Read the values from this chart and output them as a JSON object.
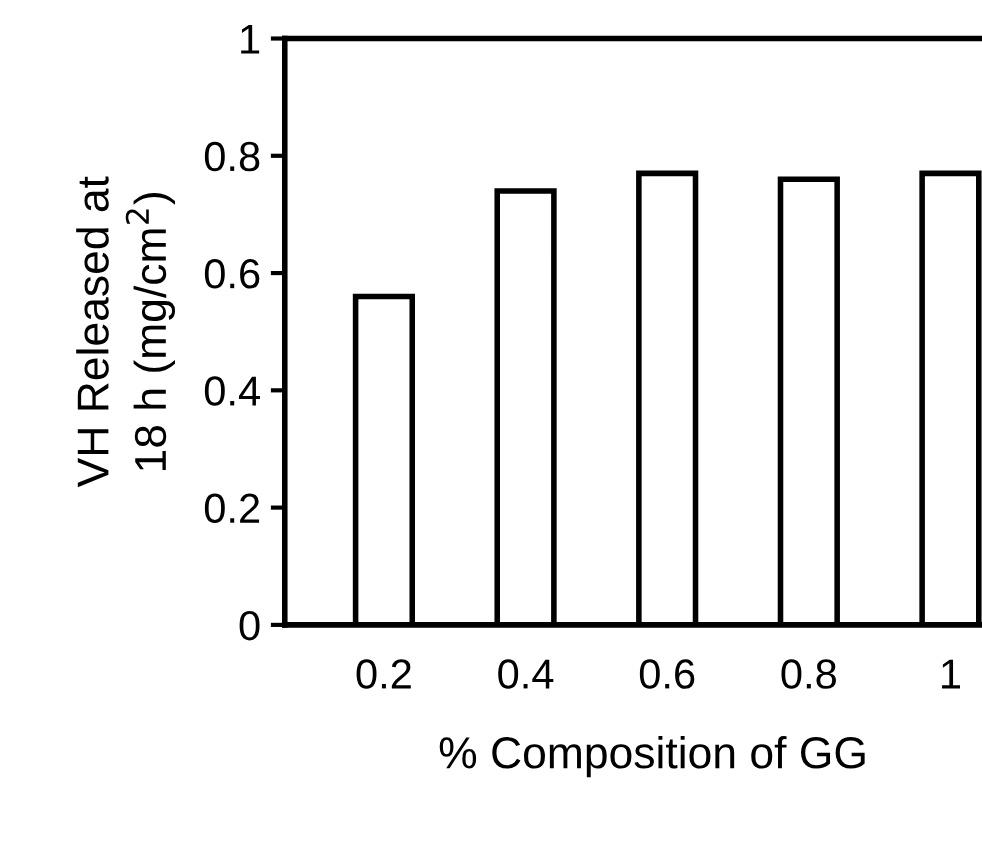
{
  "chart_data": {
    "type": "bar",
    "xlabel": "% Composition of GG",
    "ylabel": "VH Released at\n18 h (mg/cm$^{2}$)",
    "categories": [
      "0.2",
      "0.4",
      "0.6",
      "0.8",
      "1"
    ],
    "values": [
      0.56,
      0.74,
      0.77,
      0.76,
      0.77
    ],
    "color": "#ffffff",
    "ylim": [
      0,
      1
    ],
    "yticks": [
      0,
      0.2,
      0.4,
      0.6,
      0.8,
      1
    ],
    "grid": false
  }
}
